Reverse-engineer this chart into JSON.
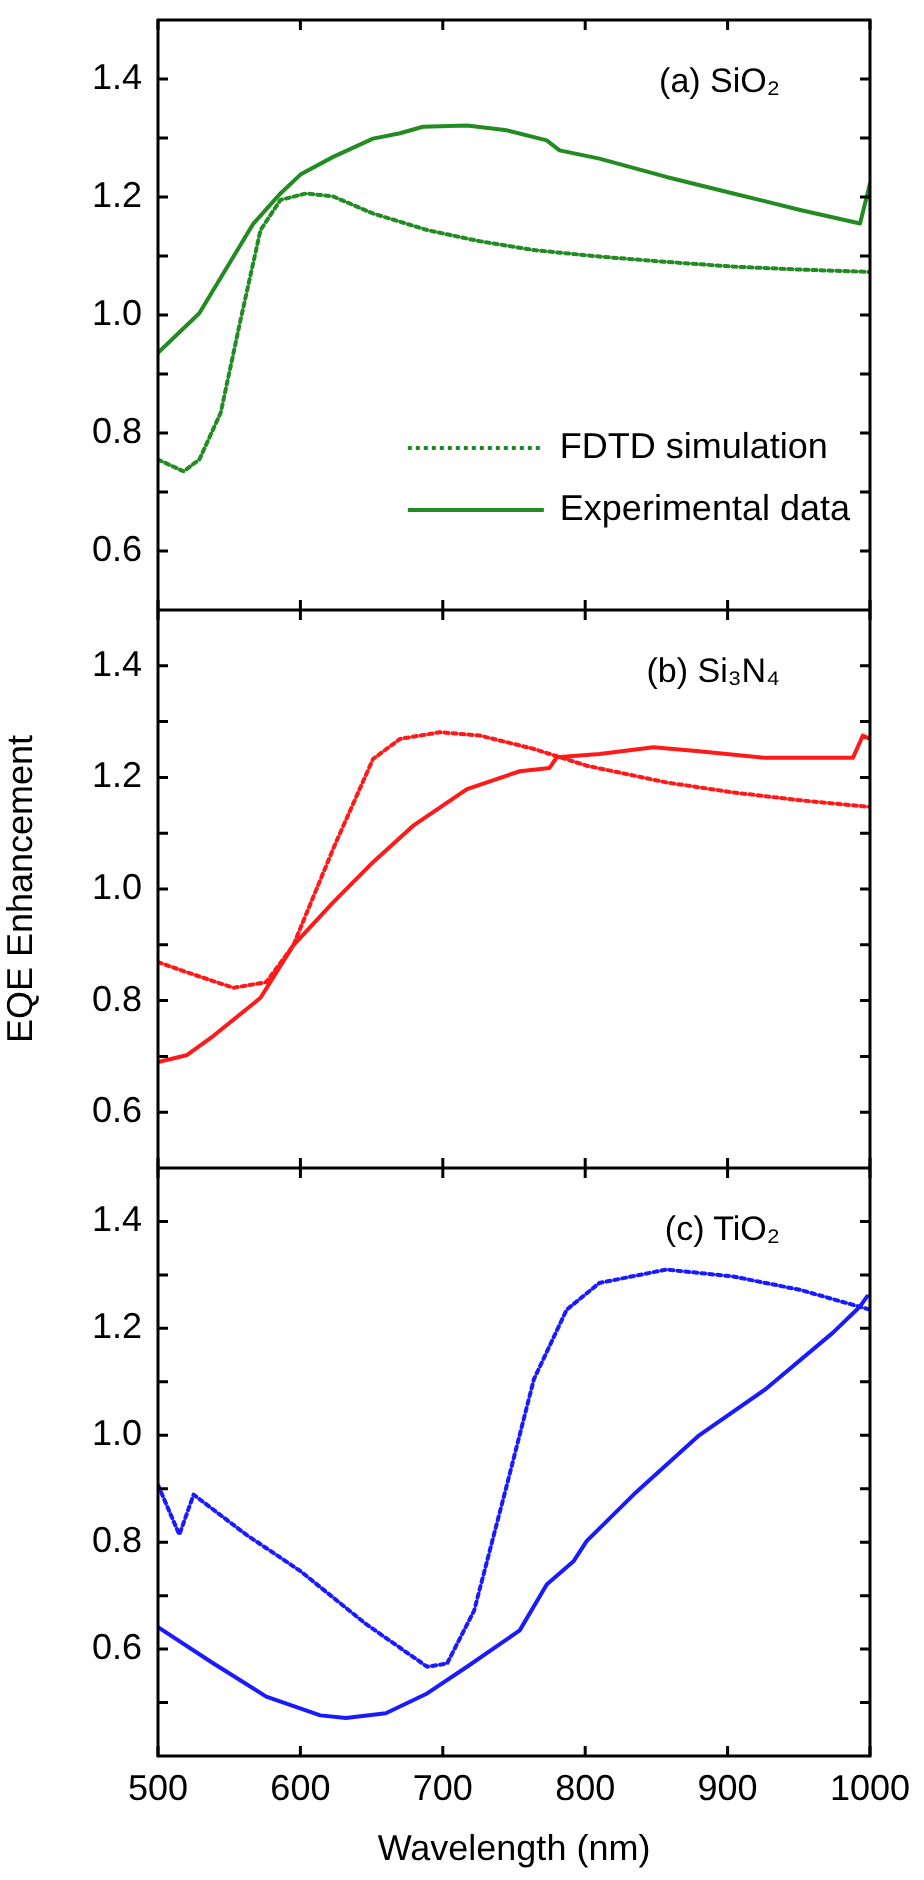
{
  "chart_data": [
    {
      "type": "line",
      "annotations": [
        "(a) SiO₂"
      ],
      "xlim": [
        500,
        1000
      ],
      "xticks": [
        500,
        600,
        700,
        800,
        900,
        1000
      ],
      "ylim": [
        0.5,
        1.5
      ],
      "yticks": [
        {
          "value": 0.6,
          "label": "0.6"
        },
        {
          "value": 0.7,
          "label": null
        },
        {
          "value": 0.8,
          "label": "0.8"
        },
        {
          "value": 0.9,
          "label": null
        },
        {
          "value": 1,
          "label": "1.0"
        },
        {
          "value": 1.1,
          "label": null
        },
        {
          "value": 1.2,
          "label": "1.2"
        },
        {
          "value": 1.3,
          "label": null
        },
        {
          "value": 1.4,
          "label": "1.4"
        }
      ],
      "tick_labels": "y",
      "grid": false,
      "legend": "bottom right",
      "marker": "none",
      "series": [
        {
          "name": "FDTD simulation",
          "color": "#228b22",
          "line_style": "dotted",
          "x": [
            500,
            518,
            529,
            544,
            558,
            572,
            586,
            604,
            623,
            651,
            689,
            726,
            764,
            810,
            857,
            904,
            951,
            1000
          ],
          "values": [
            0.755,
            0.735,
            0.755,
            0.834,
            0.992,
            1.144,
            1.195,
            1.206,
            1.201,
            1.172,
            1.144,
            1.125,
            1.11,
            1.099,
            1.09,
            1.082,
            1.077,
            1.073
          ]
        },
        {
          "name": "Experimental data",
          "color": "#228b22",
          "line_style": "solid",
          "x": [
            500,
            529,
            567,
            586,
            600,
            623,
            651,
            670,
            686,
            717,
            745,
            773,
            782,
            810,
            857,
            904,
            951,
            993,
            1000
          ],
          "values": [
            0.936,
            1.003,
            1.155,
            1.206,
            1.238,
            1.268,
            1.299,
            1.308,
            1.319,
            1.321,
            1.313,
            1.296,
            1.279,
            1.265,
            1.234,
            1.206,
            1.178,
            1.155,
            1.223
          ]
        }
      ]
    },
    {
      "type": "line",
      "ylabel": "EQE Enhancement",
      "annotations": [
        "(b) Si₃N₄"
      ],
      "xlim": [
        500,
        1000
      ],
      "xticks": [
        500,
        600,
        700,
        800,
        900,
        1000
      ],
      "ylim": [
        0.5,
        1.5
      ],
      "yticks": [
        {
          "value": 0.6,
          "label": "0.6"
        },
        {
          "value": 0.7,
          "label": null
        },
        {
          "value": 0.8,
          "label": "0.8"
        },
        {
          "value": 0.9,
          "label": null
        },
        {
          "value": 1,
          "label": "1.0"
        },
        {
          "value": 1.1,
          "label": null
        },
        {
          "value": 1.2,
          "label": "1.2"
        },
        {
          "value": 1.3,
          "label": null
        },
        {
          "value": 1.4,
          "label": "1.4"
        }
      ],
      "tick_labels": "y",
      "grid": false,
      "marker": "none",
      "series": [
        {
          "color": "#ff1a1a",
          "line_style": "dotted",
          "x": [
            500,
            520,
            553,
            576,
            595,
            623,
            651,
            670,
            698,
            726,
            764,
            801,
            857,
            904,
            951,
            1000
          ],
          "values": [
            0.869,
            0.851,
            0.823,
            0.833,
            0.899,
            1.072,
            1.233,
            1.269,
            1.281,
            1.275,
            1.251,
            1.221,
            1.191,
            1.173,
            1.159,
            1.147
          ]
        },
        {
          "color": "#ff1a1a",
          "line_style": "solid",
          "x": [
            500,
            520,
            539,
            572,
            595,
            623,
            651,
            679,
            717,
            754,
            775,
            780,
            810,
            848,
            880,
            927,
            988,
            995,
            1000
          ],
          "values": [
            0.69,
            0.702,
            0.737,
            0.805,
            0.899,
            0.976,
            1.048,
            1.113,
            1.179,
            1.211,
            1.217,
            1.236,
            1.242,
            1.254,
            1.247,
            1.235,
            1.235,
            1.275,
            1.269
          ]
        }
      ]
    },
    {
      "type": "line",
      "xlabel": "Wavelength (nm)",
      "annotations": [
        "(c) TiO₂"
      ],
      "xlim": [
        500,
        1000
      ],
      "xticks": [
        500,
        600,
        700,
        800,
        900,
        1000
      ],
      "ylim": [
        0.4,
        1.5
      ],
      "yticks": [
        {
          "value": 0.5,
          "label": null
        },
        {
          "value": 0.6,
          "label": "0.6"
        },
        {
          "value": 0.7,
          "label": null
        },
        {
          "value": 0.8,
          "label": "0.8"
        },
        {
          "value": 0.9,
          "label": null
        },
        {
          "value": 1,
          "label": "1.0"
        },
        {
          "value": 1.1,
          "label": null
        },
        {
          "value": 1.2,
          "label": "1.2"
        },
        {
          "value": 1.3,
          "label": null
        },
        {
          "value": 1.4,
          "label": "1.4"
        }
      ],
      "grid": false,
      "marker": "none",
      "series": [
        {
          "color": "#1a1aff",
          "line_style": "dotted",
          "x": [
            500,
            515,
            525,
            562,
            600,
            646,
            689,
            703,
            722,
            745,
            764,
            787,
            810,
            857,
            904,
            951,
            1000
          ],
          "values": [
            0.907,
            0.814,
            0.889,
            0.814,
            0.746,
            0.647,
            0.567,
            0.573,
            0.672,
            0.907,
            1.105,
            1.235,
            1.285,
            1.31,
            1.297,
            1.272,
            1.235
          ]
        },
        {
          "color": "#1a1aff",
          "line_style": "solid",
          "x": [
            500,
            539,
            576,
            614,
            632,
            660,
            689,
            717,
            754,
            773,
            792,
            801,
            834,
            880,
            927,
            974,
            993,
            998
          ],
          "values": [
            0.641,
            0.573,
            0.511,
            0.476,
            0.471,
            0.48,
            0.517,
            0.567,
            0.635,
            0.721,
            0.765,
            0.802,
            0.889,
            1.0,
            1.087,
            1.192,
            1.241,
            1.26
          ]
        }
      ]
    }
  ]
}
